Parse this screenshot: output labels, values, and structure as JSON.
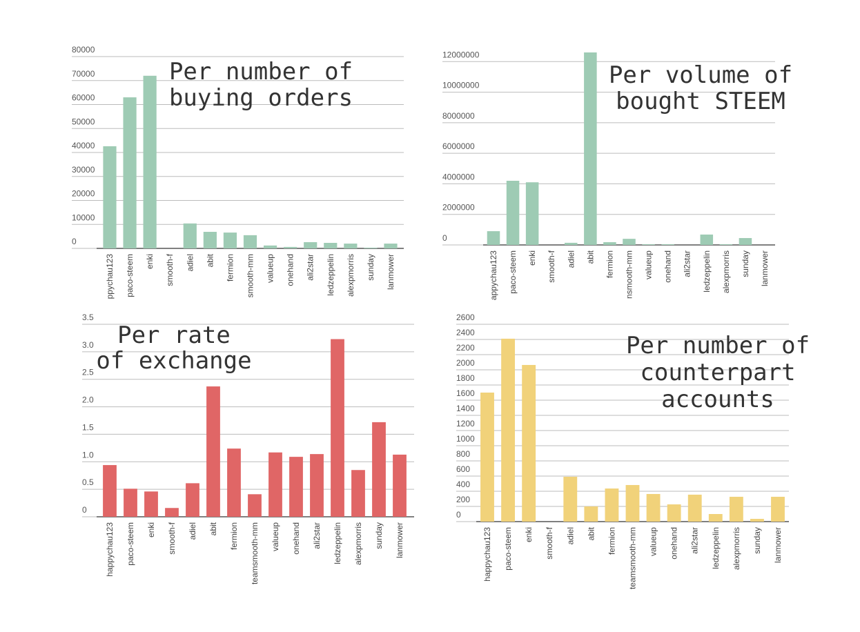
{
  "chart_data": [
    {
      "type": "bar",
      "title": [
        "Per number of",
        "buying orders"
      ],
      "categories": [
        "ppychau123",
        "paco-steem",
        "enki",
        "smooth-f",
        "adiel",
        "abit",
        "fermion",
        "smooth-mm",
        "valueup",
        "onehand",
        "ali2star",
        "ledzeppelin",
        "alexpmorris",
        "sunday",
        "lanmower"
      ],
      "values": [
        42600,
        63000,
        72000,
        0,
        10400,
        6900,
        6600,
        5500,
        1200,
        600,
        2600,
        2300,
        2000,
        300,
        2000
      ],
      "color": "#9ecbb4",
      "ylim": [
        0,
        80000
      ],
      "yticks": [
        0,
        10000,
        20000,
        30000,
        40000,
        50000,
        60000,
        70000,
        80000
      ],
      "grid": true
    },
    {
      "type": "bar",
      "title": [
        "Per volume of",
        "bought STEEM"
      ],
      "categories": [
        "appychau123",
        "paco-steem",
        "enki",
        "smooth-f",
        "adiel",
        "abit",
        "fermion",
        "nsmooth-mm",
        "valueup",
        "onehand",
        "ali2star",
        "ledzeppelin",
        "alexpmorris",
        "sunday",
        "lanmower"
      ],
      "values": [
        900000,
        4200000,
        4100000,
        0,
        140000,
        12600000,
        180000,
        400000,
        45000,
        45000,
        0,
        680000,
        45000,
        450000,
        0
      ],
      "color": "#9ecbb4",
      "ylim": [
        0,
        12600000
      ],
      "yticks": [
        0,
        2000000,
        4000000,
        6000000,
        8000000,
        10000000,
        12000000
      ],
      "grid": true
    },
    {
      "type": "bar",
      "title": [
        "Per rate",
        "of exchange"
      ],
      "categories": [
        "happychau123",
        "paco-steem",
        "enki",
        "smooth-f",
        "adiel",
        "abit",
        "fermion",
        "teamsmooth-mm",
        "valueup",
        "onehand",
        "ali2star",
        "ledzeppelin",
        "alexpmorris",
        "sunday",
        "lanmower"
      ],
      "values": [
        0.94,
        0.51,
        0.46,
        0.16,
        0.61,
        2.37,
        1.24,
        0.41,
        1.17,
        1.09,
        1.14,
        3.23,
        0.85,
        1.72,
        1.13
      ],
      "color": "#e06666",
      "ylim": [
        0,
        3.5
      ],
      "yticks": [
        0,
        0.5,
        {
          "value": 1,
          "label": "1.0"
        },
        1.5,
        {
          "value": 2,
          "label": "2.0"
        },
        2.5,
        {
          "value": 3,
          "label": "3.0"
        },
        3.5
      ],
      "grid": true
    },
    {
      "type": "bar",
      "title": [
        "Per number of",
        "counterpart",
        "accounts"
      ],
      "categories": [
        "happychau123",
        "paco-steem",
        "enki",
        "smooth-f",
        "adiel",
        "abit",
        "fermion",
        "teamsmooth-mm",
        "valueup",
        "onehand",
        "ali2star",
        "ledzeppelin",
        "alexpmorris",
        "sunday",
        "lanmower"
      ],
      "values": [
        1700,
        2410,
        2064,
        0,
        591,
        200,
        436,
        482,
        364,
        227,
        355,
        100,
        327,
        36,
        327
      ],
      "color": "#f1d27a",
      "ylim": [
        0,
        2600
      ],
      "yticks": [
        0,
        200,
        400,
        600,
        800,
        1000,
        1200,
        1400,
        1600,
        1800,
        2000,
        2200,
        2400,
        2600
      ],
      "grid": true
    }
  ]
}
